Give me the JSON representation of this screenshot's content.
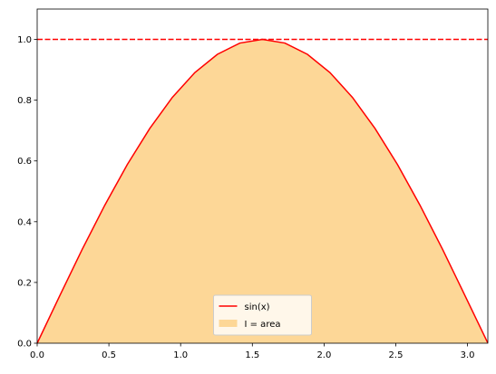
{
  "chart_data": {
    "type": "area_line",
    "x": [
      0,
      0.157,
      0.314,
      0.471,
      0.628,
      0.785,
      0.942,
      1.099,
      1.256,
      1.413,
      1.57,
      1.727,
      1.884,
      2.041,
      2.198,
      2.355,
      2.512,
      2.669,
      2.826,
      2.983,
      3.14
    ],
    "series": [
      {
        "name": "sin(x)",
        "kind": "line",
        "color": "#ff0000",
        "values": [
          0,
          0.156,
          0.309,
          0.454,
          0.588,
          0.707,
          0.809,
          0.891,
          0.951,
          0.988,
          1.0,
          0.988,
          0.951,
          0.891,
          0.809,
          0.707,
          0.588,
          0.454,
          0.309,
          0.156,
          0.002
        ]
      },
      {
        "name": "I = area",
        "kind": "area",
        "color": "#fdd797",
        "values": [
          0,
          0.156,
          0.309,
          0.454,
          0.588,
          0.707,
          0.809,
          0.891,
          0.951,
          0.988,
          1.0,
          0.988,
          0.951,
          0.891,
          0.809,
          0.707,
          0.588,
          0.454,
          0.309,
          0.156,
          0.002
        ]
      }
    ],
    "reference_line": {
      "value": 1.0,
      "color": "#ff0000",
      "style": "dashed"
    },
    "xlim": [
      0,
      3.1416
    ],
    "ylim": [
      0,
      1.1
    ],
    "xticks": [
      {
        "value": 0,
        "label": "0.0"
      },
      0.5,
      {
        "value": 1,
        "label": "1.0"
      },
      1.5,
      {
        "value": 2,
        "label": "2.0"
      },
      2.5,
      {
        "value": 3,
        "label": "3.0"
      }
    ],
    "yticks": [
      {
        "value": 0,
        "label": "0.0"
      },
      0.2,
      0.4,
      0.6,
      0.8,
      {
        "value": 1,
        "label": "1.0"
      }
    ],
    "legend": "lower center"
  }
}
